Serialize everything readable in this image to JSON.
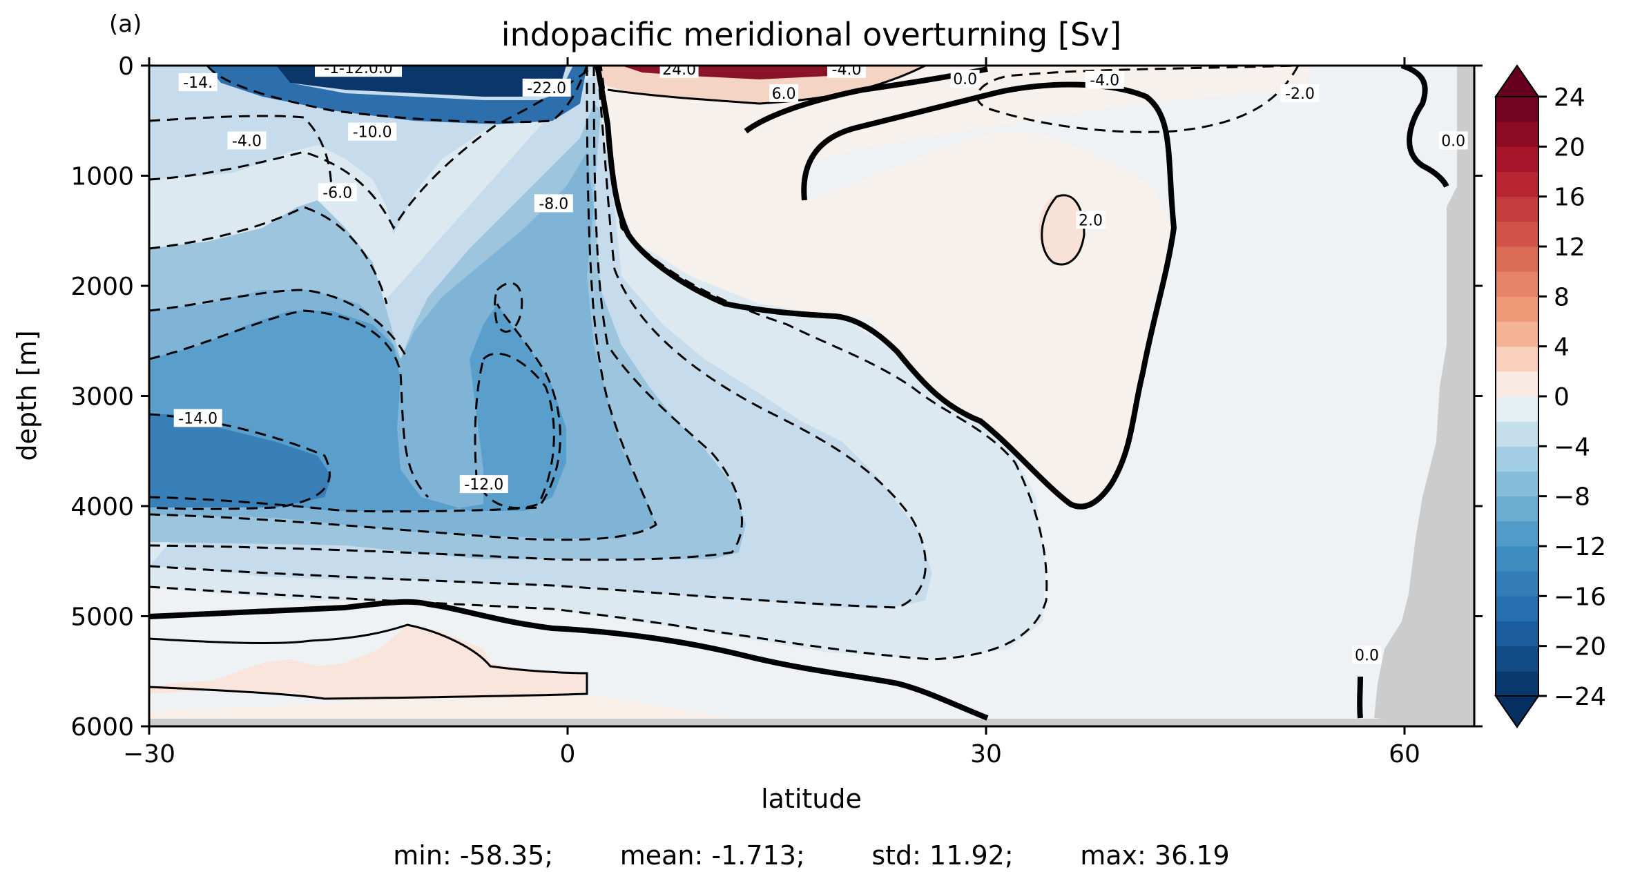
{
  "panel_label": "(a)",
  "stats_line": "min: -58.35;        mean: -1.713;        std: 11.92;        max: 36.19",
  "chart_data": {
    "type": "heatmap",
    "title": "indopacific meridional overturning [Sv]",
    "xlabel": "latitude",
    "ylabel": "depth [m]",
    "xlim": [
      -30,
      65
    ],
    "ylim": [
      6000,
      0
    ],
    "xticks": [
      -30,
      0,
      30,
      60
    ],
    "xtick_labels": [
      "−30",
      "0",
      "30",
      "60"
    ],
    "yticks": [
      0,
      1000,
      2000,
      3000,
      4000,
      5000,
      6000
    ],
    "ytick_labels": [
      "0",
      "1000",
      "2000",
      "3000",
      "4000",
      "5000",
      "6000"
    ],
    "colorbar": {
      "levels": [
        -24,
        -22,
        -20,
        -18,
        -16,
        -14,
        -12,
        -10,
        -8,
        -6,
        -4,
        -2,
        0,
        2,
        4,
        6,
        8,
        10,
        12,
        14,
        16,
        18,
        20,
        22,
        24
      ],
      "ticks": [
        -24,
        -20,
        -16,
        -12,
        -8,
        -4,
        0,
        4,
        8,
        12,
        16,
        20,
        24
      ],
      "tick_labels": [
        "−24",
        "−20",
        "−16",
        "−12",
        "−8",
        "−4",
        "0",
        "4",
        "8",
        "12",
        "16",
        "20",
        "24"
      ],
      "extend": "both",
      "cmap": "RdBu_r"
    },
    "contour_labels": [
      {
        "text": "-14.",
        "lat": -26.5,
        "depth": 150
      },
      {
        "text": "-1-12.0.0",
        "lat": -15,
        "depth": 20
      },
      {
        "text": "-4.0",
        "lat": -23,
        "depth": 680
      },
      {
        "text": "-10.0",
        "lat": -14,
        "depth": 600
      },
      {
        "text": "-6.0",
        "lat": -16.5,
        "depth": 1150
      },
      {
        "text": "-22.0",
        "lat": -1.5,
        "depth": 200
      },
      {
        "text": "-8.0",
        "lat": -1,
        "depth": 1250
      },
      {
        "text": "-14.0",
        "lat": -26.5,
        "depth": 3200
      },
      {
        "text": "-12.0",
        "lat": -6,
        "depth": 3800
      },
      {
        "text": "24.0",
        "lat": 8,
        "depth": 30
      },
      {
        "text": "-4.0",
        "lat": 20,
        "depth": 30
      },
      {
        "text": "6.0",
        "lat": 15.5,
        "depth": 250
      },
      {
        "text": "0.0",
        "lat": 28.5,
        "depth": 120
      },
      {
        "text": "-4.0",
        "lat": 38.5,
        "depth": 130
      },
      {
        "text": "-2.0",
        "lat": 52.5,
        "depth": 250
      },
      {
        "text": "2.0",
        "lat": 37.5,
        "depth": 1400
      },
      {
        "text": "0.0",
        "lat": 63.5,
        "depth": 680
      },
      {
        "text": "0.0",
        "lat": 57.3,
        "depth": 5350
      }
    ],
    "colors": {
      "deep_negative": "#053061",
      "positive_strong": "#67001f",
      "land_mask": "#cccccc",
      "near_zero": "#f7f7f7"
    }
  }
}
